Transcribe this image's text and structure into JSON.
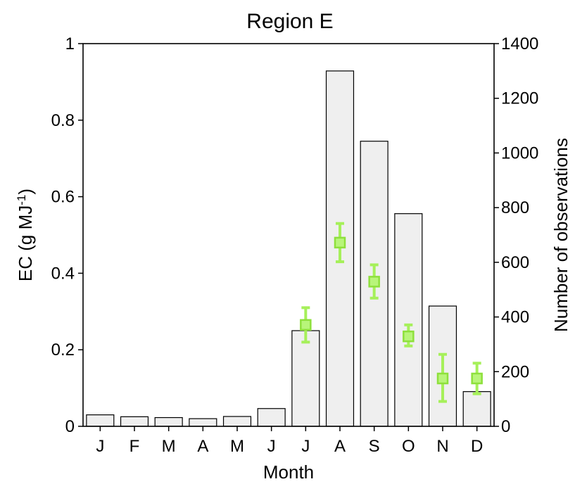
{
  "chart_data": {
    "type": "bar",
    "title": "Region E",
    "xlabel": "Month",
    "ylabel_left_main": "EC (g MJ",
    "ylabel_left_sup": "-1",
    "ylabel_left_close": ")",
    "ylabel_right": "Number of observations",
    "categories": [
      "J",
      "F",
      "M",
      "A",
      "M",
      "J",
      "J",
      "A",
      "S",
      "O",
      "N",
      "D"
    ],
    "ylim_left": [
      0,
      1
    ],
    "yticks_left": [
      "0",
      "0.2",
      "0.4",
      "0.6",
      "0.8",
      "1"
    ],
    "ylim_right": [
      0,
      1400
    ],
    "yticks_right": [
      "0",
      "200",
      "400",
      "600",
      "800",
      "1000",
      "1200",
      "1400"
    ],
    "series": [
      {
        "axis": "right",
        "kind": "bar",
        "color": "#efefef",
        "edge_color": "#000000",
        "values": [
          42,
          35,
          32,
          28,
          36,
          65,
          350,
          1300,
          1043,
          778,
          440,
          127
        ]
      },
      {
        "axis": "left",
        "kind": "point-errorbar",
        "color": "#a6f05a",
        "marker": "square",
        "points": [
          {
            "category_index": 6,
            "value": 0.265,
            "lower": 0.22,
            "upper": 0.31
          },
          {
            "category_index": 7,
            "value": 0.48,
            "lower": 0.43,
            "upper": 0.53
          },
          {
            "category_index": 8,
            "value": 0.378,
            "lower": 0.335,
            "upper": 0.422
          },
          {
            "category_index": 9,
            "value": 0.235,
            "lower": 0.21,
            "upper": 0.265
          },
          {
            "category_index": 10,
            "value": 0.125,
            "lower": 0.065,
            "upper": 0.188
          },
          {
            "category_index": 11,
            "value": 0.125,
            "lower": 0.085,
            "upper": 0.165
          }
        ]
      }
    ],
    "grid": false,
    "legend": "none"
  }
}
